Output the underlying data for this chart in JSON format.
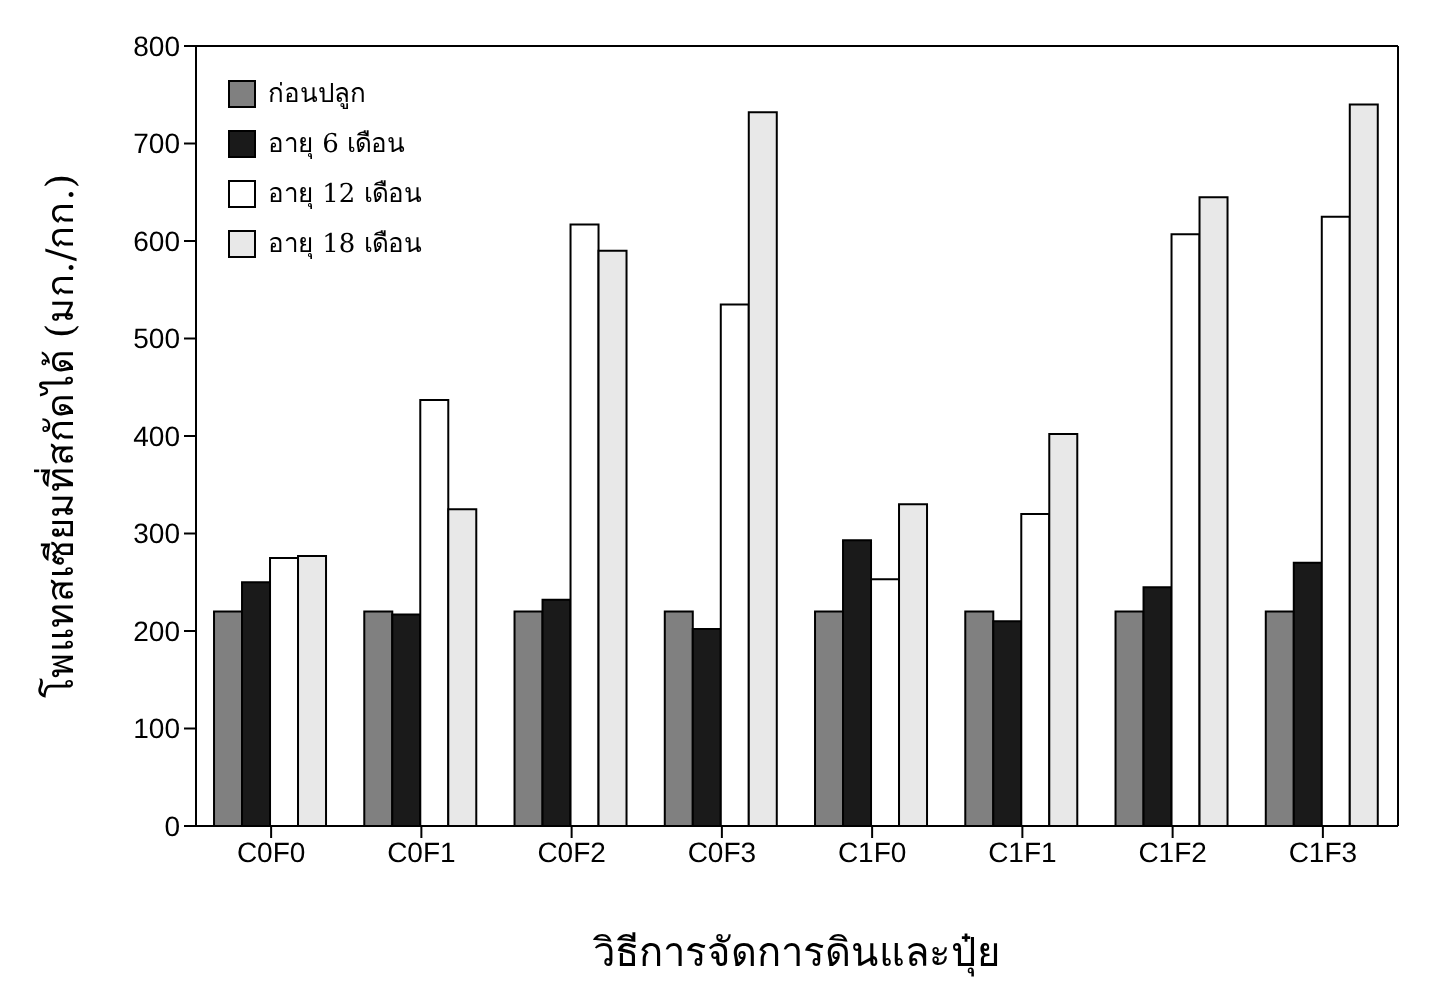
{
  "chart_data": {
    "type": "bar",
    "xlabel": "วิธีการจัดการดินและปุ๋ย",
    "ylabel": "โพแทสเซียมที่สกัดได้ (มก./กก.)",
    "categories": [
      "C0F0",
      "C0F1",
      "C0F2",
      "C0F3",
      "C1F0",
      "C1F1",
      "C1F2",
      "C1F3"
    ],
    "series": [
      {
        "name": "ก่อนปลูก",
        "color": "#808080",
        "values": [
          220,
          220,
          220,
          220,
          220,
          220,
          220,
          220
        ]
      },
      {
        "name": "อายุ 6 เดือน",
        "color": "#1a1a1a",
        "values": [
          250,
          217,
          232,
          202,
          293,
          210,
          245,
          270
        ]
      },
      {
        "name": "อายุ 12 เดือน",
        "color": "#ffffff",
        "values": [
          275,
          437,
          617,
          535,
          253,
          320,
          607,
          625
        ]
      },
      {
        "name": "อายุ 18 เดือน",
        "color": "#e8e8e8",
        "values": [
          277,
          325,
          590,
          732,
          330,
          402,
          645,
          740
        ]
      }
    ],
    "ylim": [
      0,
      800
    ],
    "yticks": [
      0,
      100,
      200,
      300,
      400,
      500,
      600,
      700,
      800
    ],
    "grid": false,
    "legend": "top left"
  }
}
